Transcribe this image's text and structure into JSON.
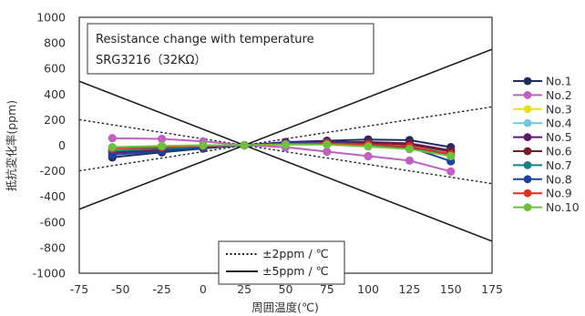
{
  "chart_data": {
    "type": "line",
    "annotation": {
      "title": "Resistance change with temperature",
      "subtitle": "SRG3216（32KΩ）"
    },
    "xlabel": "周囲温度(℃)",
    "ylabel": "抵抗変化率(ppm)",
    "xlim": [
      -75,
      175
    ],
    "ylim": [
      -1000,
      1000
    ],
    "x_ticks": [
      -75,
      -50,
      -25,
      0,
      25,
      50,
      75,
      100,
      125,
      150,
      175
    ],
    "y_ticks": [
      1000,
      800,
      600,
      400,
      200,
      0,
      -200,
      -400,
      -600,
      -800,
      -1000
    ],
    "x_tick_labels": [
      "-75",
      "-50",
      "-25",
      "0",
      "25",
      "50",
      "75",
      "100",
      "125",
      "150",
      "175"
    ],
    "y_tick_labels": [
      "1000",
      "800",
      "600",
      "400",
      "200",
      "0",
      "-200",
      "-400",
      "-600",
      "-800",
      "-1000"
    ],
    "x": [
      -55,
      -25,
      0,
      25,
      50,
      75,
      100,
      125,
      150
    ],
    "series": [
      {
        "name": "No.1",
        "color": "#1f2d5c",
        "values": [
          -95,
          -55,
          -25,
          0,
          25,
          35,
          45,
          40,
          -15
        ]
      },
      {
        "name": "No.2",
        "color": "#c060c0",
        "values": [
          55,
          50,
          30,
          0,
          -15,
          -50,
          -85,
          -120,
          -205
        ]
      },
      {
        "name": "No.3",
        "color": "#e8e020",
        "values": [
          -30,
          -15,
          -5,
          0,
          10,
          10,
          5,
          -20,
          -55
        ]
      },
      {
        "name": "No.4",
        "color": "#70c8d8",
        "values": [
          -40,
          -20,
          -10,
          0,
          15,
          15,
          10,
          -15,
          -60
        ]
      },
      {
        "name": "No.5",
        "color": "#5a1a6a",
        "values": [
          -60,
          -35,
          -15,
          0,
          20,
          25,
          25,
          15,
          -40
        ]
      },
      {
        "name": "No.6",
        "color": "#7a1a2a",
        "values": [
          -50,
          -30,
          -15,
          0,
          20,
          25,
          20,
          5,
          -50
        ]
      },
      {
        "name": "No.7",
        "color": "#1a8080",
        "values": [
          -45,
          -25,
          -10,
          0,
          15,
          15,
          5,
          -20,
          -80
        ]
      },
      {
        "name": "No.8",
        "color": "#2040a0",
        "values": [
          -75,
          -45,
          -20,
          0,
          20,
          20,
          10,
          -15,
          -125
        ]
      },
      {
        "name": "No.9",
        "color": "#e03020",
        "values": [
          -25,
          -15,
          -5,
          0,
          10,
          15,
          5,
          -10,
          -70
        ]
      },
      {
        "name": "No.10",
        "color": "#70c040",
        "values": [
          -15,
          -5,
          0,
          0,
          5,
          5,
          -10,
          -30,
          -85
        ]
      }
    ],
    "reference_lines": [
      {
        "label": "±2ppm / ℃",
        "style": "dotted",
        "slope_ppm_per_degC": 2,
        "center_x": 25
      },
      {
        "label": "±5ppm / ℃",
        "style": "solid",
        "slope_ppm_per_degC": 5,
        "center_x": 25
      }
    ],
    "grid": false,
    "legend_position": "right"
  }
}
